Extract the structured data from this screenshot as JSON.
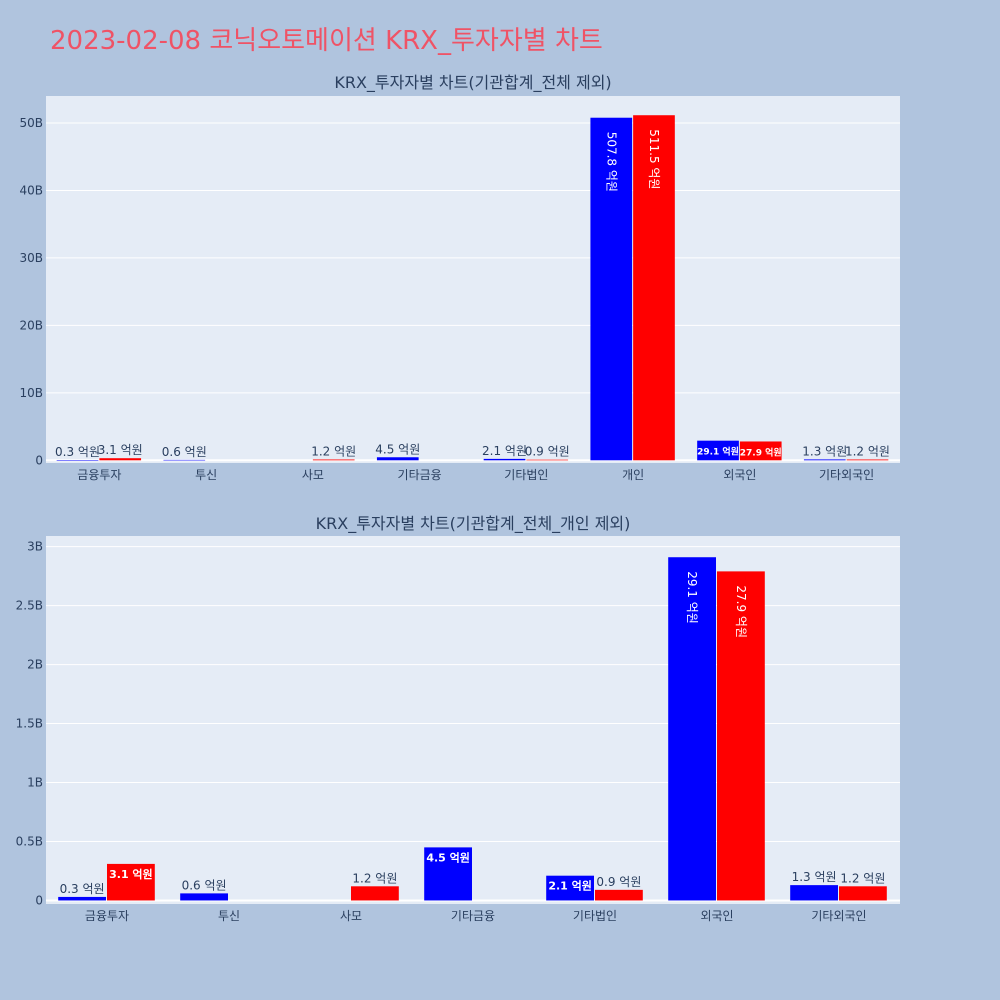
{
  "title": "2023-02-08 코닉오토메이션 KRX_투자자별 차트",
  "colors": {
    "buy": "#0000ff",
    "sell": "#ff0000",
    "plot_bg": "#e5ecf6",
    "page_bg": "#b0c4de",
    "title": "#ef5366",
    "text": "#2a3f5f"
  },
  "chart_data": [
    {
      "type": "bar",
      "title": "KRX_투자자별 차트(기관합계_전체 제외)",
      "categories": [
        "금융투자",
        "투신",
        "사모",
        "기타금융",
        "기타법인",
        "개인",
        "외국인",
        "기타외국인"
      ],
      "yticks": [
        0,
        10,
        20,
        30,
        40,
        50
      ],
      "ytick_labels": [
        "0",
        "10B",
        "20B",
        "30B",
        "40B",
        "50B"
      ],
      "ylim": [
        -0.4,
        54
      ],
      "series": [
        {
          "color": "#0000ff",
          "values": [
            0.03,
            0.06,
            null,
            0.45,
            0.21,
            50.78,
            2.91,
            0.13
          ],
          "labels": [
            "0.3 억원",
            "0.6 억원",
            "",
            "4.5 억원",
            "2.1 억원",
            "507.8 억원",
            "29.1 억원",
            "1.3 억원"
          ]
        },
        {
          "color": "#ff0000",
          "values": [
            0.31,
            null,
            0.12,
            null,
            0.09,
            51.15,
            2.79,
            0.12
          ],
          "labels": [
            "3.1 억원",
            "",
            "1.2 억원",
            "",
            "0.9 억원",
            "511.5 억원",
            "27.9 억원",
            "1.2 억원"
          ]
        }
      ]
    },
    {
      "type": "bar",
      "title": "KRX_투자자별 차트(기관합계_전체_개인 제외)",
      "categories": [
        "금융투자",
        "투신",
        "사모",
        "기타금융",
        "기타법인",
        "외국인",
        "기타외국인"
      ],
      "yticks": [
        0,
        0.5,
        1,
        1.5,
        2,
        2.5,
        3
      ],
      "ytick_labels": [
        "0",
        "0.5B",
        "1B",
        "1.5B",
        "2B",
        "2.5B",
        "3B"
      ],
      "ylim": [
        -0.03,
        3.09
      ],
      "series": [
        {
          "color": "#0000ff",
          "values": [
            0.03,
            0.06,
            null,
            0.45,
            0.21,
            2.91,
            0.13
          ],
          "labels": [
            "0.3 억원",
            "0.6 억원",
            "",
            "4.5 억원",
            "2.1 억원",
            "29.1 억원",
            "1.3 억원"
          ]
        },
        {
          "color": "#ff0000",
          "values": [
            0.31,
            null,
            0.12,
            null,
            0.09,
            2.79,
            0.12
          ],
          "labels": [
            "3.1 억원",
            "",
            "1.2 억원",
            "",
            "0.9 억원",
            "27.9 억원",
            "1.2 억원"
          ]
        }
      ]
    }
  ]
}
